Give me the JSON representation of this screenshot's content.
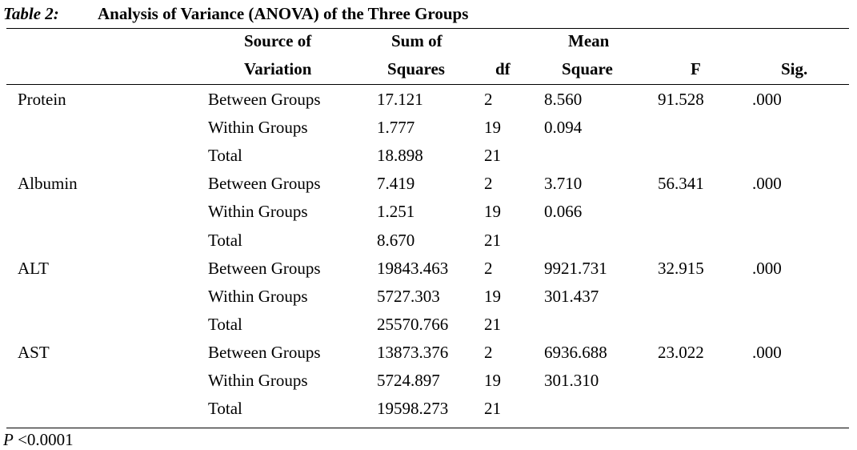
{
  "caption": {
    "label": "Table 2:",
    "title": "Analysis of Variance (ANOVA) of the Three Groups"
  },
  "headers": {
    "source_line1": "Source of",
    "source_line2": "Variation",
    "ss_line1": "Sum of",
    "ss_line2": "Squares",
    "df": "df",
    "ms_line1": "Mean",
    "ms_line2": "Square",
    "f": "F",
    "sig": "Sig."
  },
  "rows": [
    {
      "group": "Protein",
      "source": "Between Groups",
      "ss": "17.121",
      "df": "2",
      "ms": "8.560",
      "f": "91.528",
      "sig": ".000"
    },
    {
      "group": "",
      "source": "Within Groups",
      "ss": "1.777",
      "df": "19",
      "ms": "0.094",
      "f": "",
      "sig": ""
    },
    {
      "group": "",
      "source": "Total",
      "ss": "18.898",
      "df": "21",
      "ms": "",
      "f": "",
      "sig": ""
    },
    {
      "group": "Albumin",
      "source": "Between Groups",
      "ss": "7.419",
      "df": "2",
      "ms": "3.710",
      "f": "56.341",
      "sig": ".000"
    },
    {
      "group": "",
      "source": "Within Groups",
      "ss": "1.251",
      "df": "19",
      "ms": "0.066",
      "f": "",
      "sig": ""
    },
    {
      "group": "",
      "source": "Total",
      "ss": "8.670",
      "df": "21",
      "ms": "",
      "f": "",
      "sig": ""
    },
    {
      "group": "ALT",
      "source": "Between Groups",
      "ss": "19843.463",
      "df": "2",
      "ms": "9921.731",
      "f": "32.915",
      "sig": ".000"
    },
    {
      "group": "",
      "source": "Within Groups",
      "ss": "5727.303",
      "df": "19",
      "ms": "301.437",
      "f": "",
      "sig": ""
    },
    {
      "group": "",
      "source": "Total",
      "ss": "25570.766",
      "df": "21",
      "ms": "",
      "f": "",
      "sig": ""
    },
    {
      "group": "AST",
      "source": "Between Groups",
      "ss": "13873.376",
      "df": "2",
      "ms": "6936.688",
      "f": "23.022",
      "sig": ".000"
    },
    {
      "group": "",
      "source": "Within Groups",
      "ss": "5724.897",
      "df": "19",
      "ms": "301.310",
      "f": "",
      "sig": ""
    },
    {
      "group": "",
      "source": "Total",
      "ss": "19598.273",
      "df": "21",
      "ms": "",
      "f": "",
      "sig": ""
    }
  ],
  "footnote": {
    "p": "P",
    "text": " <0.0001"
  }
}
